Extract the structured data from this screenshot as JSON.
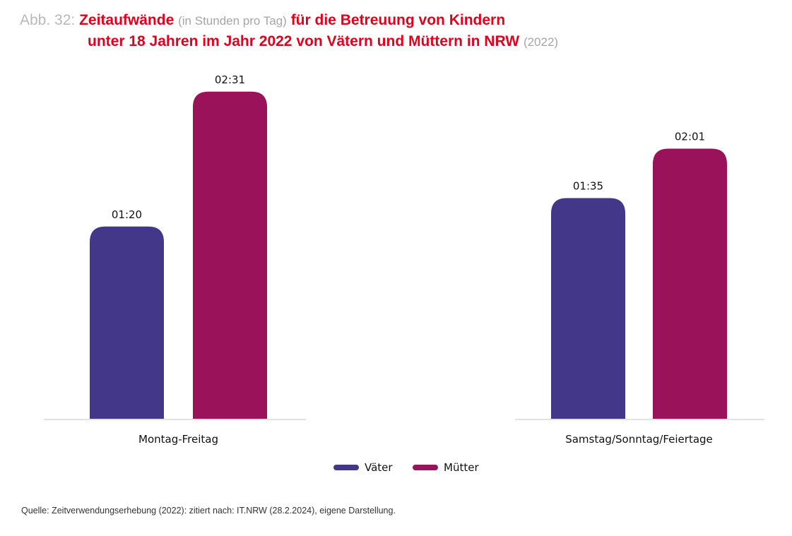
{
  "header": {
    "prefix": "Abb. 32:",
    "title_bold_1": "Zeitaufwände",
    "title_note": "(in Stunden pro Tag)",
    "title_bold_2": "für die Betreuung von Kindern",
    "title_line2": "unter 18 Jahren im Jahr 2022 von Vätern und Müttern in NRW",
    "title_year": "(2022)"
  },
  "colors": {
    "vaeter": "#43378a",
    "muetter": "#99125a",
    "title_red": "#e2001a"
  },
  "chart_data": {
    "type": "bar",
    "title": "Zeitaufwände (in Stunden pro Tag) für die Betreuung von Kindern unter 18 Jahren im Jahr 2022 von Vätern und Müttern in NRW (2022)",
    "xlabel": "",
    "ylabel": "",
    "unit": "hh:mm",
    "categories": [
      "Montag-Freitag",
      "Samstag/Sonntag/Feiertage"
    ],
    "series": [
      {
        "name": "Väter",
        "values_minutes": [
          80,
          95
        ],
        "labels": [
          "01:20",
          "01:35"
        ],
        "color": "#43378a"
      },
      {
        "name": "Mütter",
        "values_minutes": [
          151,
          121
        ],
        "labels": [
          "02:31",
          "02:01"
        ],
        "color": "#99125a"
      }
    ],
    "grid": false,
    "legend": "bottom-center"
  },
  "source": "Quelle: Zeitverwendungserhebung (2022): zitiert nach: IT.NRW (28.2.2024), eigene Darstellung."
}
